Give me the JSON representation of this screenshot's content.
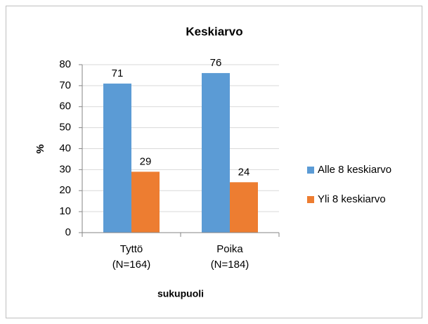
{
  "chart_data": {
    "type": "bar",
    "title": "Keskiarvo",
    "y_label": "%",
    "x_label": "sukupuoli",
    "categories": [
      "Tyttö\n(N=164)",
      "Poika\n(N=184)"
    ],
    "series": [
      {
        "name": "Alle 8 keskiarvo",
        "color": "#5b9bd5",
        "values": [
          71,
          76
        ]
      },
      {
        "name": "Yli 8 keskiarvo",
        "color": "#ed7d31",
        "values": [
          29,
          24
        ]
      }
    ],
    "ylim": [
      0,
      80
    ],
    "yticks": [
      0,
      10,
      20,
      30,
      40,
      50,
      60,
      70,
      80
    ],
    "grid": true,
    "legend": "right"
  }
}
